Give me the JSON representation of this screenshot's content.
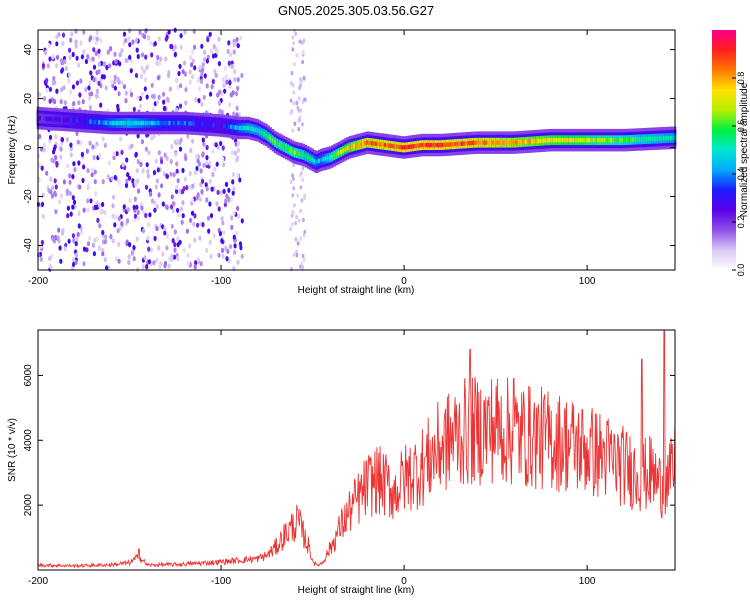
{
  "title": "GN05.2025.305.03.56.G27",
  "chart_data": [
    {
      "type": "heatmap",
      "xlabel": "Height of straight line (km)",
      "ylabel": "Frequency (Hz)",
      "xlim": [
        -200,
        148
      ],
      "ylim": [
        -50,
        48
      ],
      "xticks": [
        -200,
        -100,
        0,
        100
      ],
      "yticks": [
        -40,
        -20,
        0,
        20,
        40
      ],
      "colorbar": {
        "label": "Normalized spectral amplitude",
        "range": [
          0,
          1
        ],
        "ticks": [
          "0.0",
          "0.2",
          "0.4",
          "0.6",
          "0.8"
        ],
        "tick_values": [
          0.0,
          0.2,
          0.4,
          0.6,
          0.8
        ],
        "colormap": [
          "#ffffff",
          "#d8c8f4",
          "#8f4fe8",
          "#5a00e8",
          "#1c1cff",
          "#00a8ff",
          "#00e8d0",
          "#00f040",
          "#b8f000",
          "#ffe000",
          "#ff7800",
          "#ff1e1e",
          "#ff008c"
        ]
      },
      "ridge": {
        "x": [
          -200,
          -180,
          -160,
          -150,
          -140,
          -120,
          -100,
          -90,
          -85,
          -80,
          -75,
          -70,
          -65,
          -60,
          -55,
          -50,
          -48,
          -45,
          -40,
          -35,
          -30,
          -25,
          -20,
          -10,
          0,
          10,
          20,
          40,
          60,
          80,
          100,
          120,
          148
        ],
        "freq": [
          12,
          11,
          10,
          10,
          10,
          10,
          9,
          8,
          8,
          7,
          5,
          2,
          0,
          -2,
          -3,
          -5,
          -6,
          -5,
          -4,
          -2,
          0,
          1,
          2,
          1,
          0,
          1,
          1,
          2,
          2,
          3,
          3,
          3,
          4
        ],
        "amplitude": [
          0.25,
          0.3,
          0.45,
          0.5,
          0.45,
          0.35,
          0.3,
          0.45,
          0.5,
          0.5,
          0.55,
          0.6,
          0.6,
          0.65,
          0.55,
          0.5,
          0.45,
          0.45,
          0.55,
          0.7,
          0.75,
          0.8,
          0.85,
          0.85,
          0.9,
          0.9,
          0.9,
          0.85,
          0.8,
          0.75,
          0.7,
          0.6,
          0.5
        ]
      }
    },
    {
      "type": "line",
      "xlabel": "Height of straight line (km)",
      "ylabel": "SNR (10 * v/v)",
      "xlim": [
        -200,
        148
      ],
      "ylim": [
        0,
        7400
      ],
      "xticks": [
        -200,
        -100,
        0,
        100
      ],
      "yticks": [
        2000,
        4000,
        6000
      ],
      "color": "#ee3333",
      "series": [
        {
          "x": [
            -200,
            -180,
            -160,
            -150,
            -145,
            -140,
            -120,
            -100,
            -90,
            -80,
            -75,
            -70,
            -65,
            -60,
            -58,
            -55,
            -52,
            -50,
            -48,
            -45,
            -40,
            -35,
            -30,
            -25,
            -20,
            -15,
            -10,
            -5,
            0,
            5,
            10,
            15,
            20,
            25,
            30,
            40,
            50,
            60,
            70,
            80,
            90,
            100,
            110,
            120,
            130,
            135,
            140,
            145,
            148
          ],
          "values": [
            150,
            130,
            160,
            220,
            400,
            150,
            180,
            250,
            300,
            350,
            450,
            700,
            1100,
            1400,
            1500,
            1100,
            700,
            300,
            150,
            200,
            700,
            1300,
            1800,
            2200,
            2600,
            2800,
            2600,
            2400,
            2800,
            3000,
            3200,
            3500,
            3800,
            4000,
            4200,
            4300,
            4400,
            4200,
            4100,
            4000,
            3900,
            3700,
            3500,
            3200,
            2900,
            3000,
            2600,
            2800,
            3200
          ]
        }
      ],
      "peaks": {
        "x": [
          -145,
          -58,
          36,
          60,
          130,
          142
        ],
        "values": [
          650,
          1850,
          6800,
          5900,
          6500,
          7400
        ]
      }
    }
  ]
}
